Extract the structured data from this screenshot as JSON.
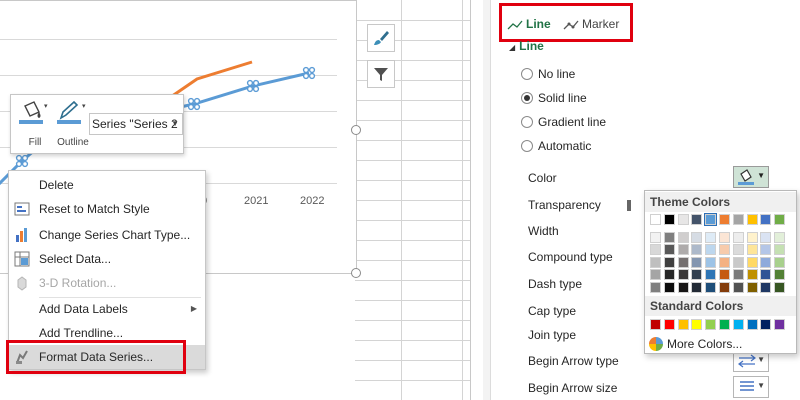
{
  "chart": {
    "x_labels": [
      "0",
      "2021",
      "2022"
    ],
    "series": [
      {
        "color": "#ed7d31",
        "points": [
          [
            165,
            102
          ],
          [
            200,
            78
          ],
          [
            255,
            61
          ]
        ],
        "markers": false
      },
      {
        "color": "#5b9bd5",
        "points": [
          [
            -5,
            190
          ],
          [
            25,
            160
          ],
          [
            60,
            130
          ],
          [
            120,
            120
          ],
          [
            197,
            103
          ],
          [
            256,
            85
          ],
          [
            312,
            72
          ]
        ],
        "markers": true
      }
    ]
  },
  "mini_toolbar": {
    "fill_label": "Fill",
    "outline_label": "Outline",
    "series_selector_value": "Series \"Series 2"
  },
  "context_menu": {
    "items": [
      {
        "label": "Delete",
        "icon": "none",
        "enabled": true
      },
      {
        "label": "Reset to Match Style",
        "icon": "reset-style-icon",
        "enabled": true
      },
      {
        "label": "Change Series Chart Type...",
        "icon": "change-chart-type-icon",
        "enabled": true
      },
      {
        "label": "Select Data...",
        "icon": "select-data-icon",
        "enabled": true
      },
      {
        "label": "3-D Rotation...",
        "icon": "rotation-3d-icon",
        "enabled": false
      },
      {
        "label": "Add Data Labels",
        "icon": "none",
        "enabled": true,
        "submenu": true
      },
      {
        "label": "Add Trendline...",
        "icon": "none",
        "enabled": true
      },
      {
        "label": "Format Data Series...",
        "icon": "format-series-icon",
        "enabled": true
      }
    ]
  },
  "format_pane": {
    "tabs": [
      {
        "label": "Line",
        "icon": "line-icon",
        "active": true
      },
      {
        "label": "Marker",
        "icon": "marker-icon",
        "active": false
      }
    ],
    "section_title": "Line",
    "line_options": [
      {
        "label": "No line",
        "checked": false
      },
      {
        "label": "Solid line",
        "checked": true
      },
      {
        "label": "Gradient line",
        "checked": false
      },
      {
        "label": "Automatic",
        "checked": false
      }
    ],
    "properties": {
      "color": "Color",
      "transparency": "Transparency",
      "width": "Width",
      "compound_type": "Compound type",
      "dash_type": "Dash type",
      "cap_type": "Cap type",
      "join_type": "Join type",
      "begin_arrow_type": "Begin Arrow type",
      "begin_arrow_size": "Begin Arrow size"
    },
    "color_picker": {
      "theme_title": "Theme Colors",
      "standard_title": "Standard Colors",
      "more_colors": "More Colors...",
      "selected_theme": "#5b9bd5",
      "theme_rows": [
        [
          "#ffffff",
          "#000000",
          "#e7e6e6",
          "#44546a",
          "#5b9bd5",
          "#ed7d31",
          "#a5a5a5",
          "#ffc000",
          "#4472c4",
          "#70ad47"
        ],
        [
          "#f2f2f2",
          "#7f7f7f",
          "#d0cece",
          "#d6dce4",
          "#deebf6",
          "#fbe5d5",
          "#ededed",
          "#fff2cc",
          "#dae3f3",
          "#e2efd9"
        ],
        [
          "#d8d8d8",
          "#595959",
          "#aeabab",
          "#adb9ca",
          "#bdd7ee",
          "#f7cbac",
          "#dbdbdb",
          "#fee599",
          "#b4c6e7",
          "#c5e0b3"
        ],
        [
          "#bfbfbf",
          "#3f3f3f",
          "#757070",
          "#8496b0",
          "#9dc3e6",
          "#f4b183",
          "#c9c9c9",
          "#ffd965",
          "#8eaadb",
          "#a8d08d"
        ],
        [
          "#a5a5a5",
          "#262626",
          "#3a3838",
          "#323f4f",
          "#2e75b5",
          "#c55a11",
          "#7b7b7b",
          "#bf9000",
          "#2f5496",
          "#538135"
        ],
        [
          "#7f7f7f",
          "#0c0c0c",
          "#171616",
          "#222a35",
          "#1e4e79",
          "#833c0b",
          "#525252",
          "#7f6000",
          "#1f3864",
          "#375623"
        ]
      ],
      "standard": [
        "#c00000",
        "#ff0000",
        "#ffc000",
        "#ffff00",
        "#92d050",
        "#00b050",
        "#00b0f0",
        "#0070c0",
        "#002060",
        "#7030a0"
      ]
    }
  }
}
